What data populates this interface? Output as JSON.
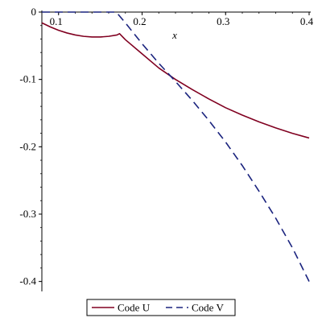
{
  "chart_data": {
    "type": "line",
    "title": "",
    "xlabel": "x",
    "ylabel": "",
    "xlim": [
      0.08,
      0.4
    ],
    "ylim": [
      -0.41,
      0.0
    ],
    "x_ticks": [
      0.1,
      0.2,
      0.3,
      0.4
    ],
    "x_tick_labels": [
      "0.1",
      "0.2",
      "0.3",
      "0.4"
    ],
    "y_ticks": [
      0,
      -0.1,
      -0.2,
      -0.3,
      -0.4
    ],
    "y_tick_labels": [
      "0",
      "-0.1",
      "-0.2",
      "-0.3",
      "-0.4"
    ],
    "grid": false,
    "legend_position": "bottom",
    "series": [
      {
        "name": "Code U",
        "color": "#800020",
        "dash": "solid",
        "x": [
          0.08,
          0.09,
          0.1,
          0.11,
          0.12,
          0.13,
          0.14,
          0.15,
          0.16,
          0.17,
          0.173,
          0.18,
          0.2,
          0.22,
          0.24,
          0.26,
          0.28,
          0.3,
          0.32,
          0.34,
          0.36,
          0.38,
          0.4
        ],
        "y": [
          -0.016,
          -0.022,
          -0.027,
          -0.031,
          -0.034,
          -0.036,
          -0.037,
          -0.037,
          -0.036,
          -0.034,
          -0.032,
          -0.041,
          -0.062,
          -0.083,
          -0.1,
          -0.115,
          -0.129,
          -0.142,
          -0.153,
          -0.163,
          -0.172,
          -0.18,
          -0.187
        ]
      },
      {
        "name": "Code V",
        "color": "#1a237e",
        "dash": "dashed",
        "x": [
          0.08,
          0.1,
          0.12,
          0.14,
          0.16,
          0.169,
          0.18,
          0.2,
          0.22,
          0.24,
          0.26,
          0.28,
          0.3,
          0.32,
          0.34,
          0.36,
          0.38,
          0.4
        ],
        "y": [
          0,
          0,
          0,
          0,
          0,
          0,
          -0.016,
          -0.047,
          -0.076,
          -0.103,
          -0.131,
          -0.161,
          -0.193,
          -0.228,
          -0.266,
          -0.306,
          -0.35,
          -0.4
        ]
      }
    ]
  }
}
